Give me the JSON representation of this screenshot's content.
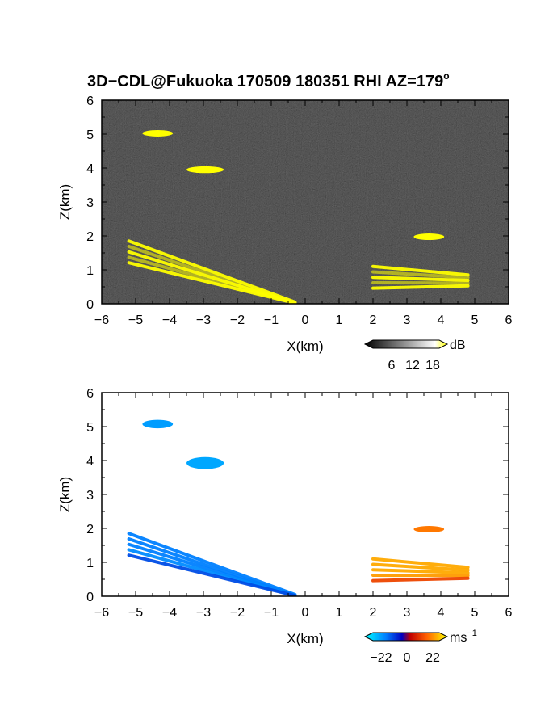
{
  "title": "3D−CDL@Fukuoka 170509 180351 RHI AZ=179",
  "title_degree": "o",
  "chart_data": [
    {
      "type": "heatmap",
      "name": "backscatter",
      "xlabel": "X(km)",
      "ylabel": "Z(km)",
      "xlim": [
        -6,
        6
      ],
      "ylim": [
        0,
        6
      ],
      "xticks": [
        "−6",
        "−5",
        "−4",
        "−3",
        "−2",
        "−1",
        "0",
        "1",
        "2",
        "3",
        "4",
        "5",
        "6"
      ],
      "yticks": [
        "0",
        "1",
        "2",
        "3",
        "4",
        "5",
        "6"
      ],
      "colorbar": {
        "unit": "dB",
        "ticks": [
          "6",
          "12",
          "18"
        ],
        "range": [
          0,
          21
        ]
      },
      "background": "#1e1e1e",
      "saturation_color": "#ffff00",
      "features": [
        {
          "kind": "patch",
          "x": [
            -4.8,
            -3.9
          ],
          "z": [
            4.95,
            5.1
          ],
          "level": "high"
        },
        {
          "kind": "patch",
          "x": [
            -3.5,
            -2.4
          ],
          "z": [
            3.85,
            4.05
          ],
          "level": "high"
        },
        {
          "kind": "patch",
          "x": [
            3.2,
            4.1
          ],
          "z": [
            1.9,
            2.05
          ],
          "level": "high"
        },
        {
          "kind": "band",
          "x": [
            -5.2,
            -0.3
          ],
          "z": [
            1.85,
            0.05
          ],
          "level": "high"
        },
        {
          "kind": "band",
          "x": [
            2.0,
            4.8
          ],
          "z": [
            1.1,
            0.85
          ],
          "level": "high"
        }
      ],
      "grid": false
    },
    {
      "type": "heatmap",
      "name": "doppler-velocity",
      "xlabel": "X(km)",
      "ylabel": "Z(km)",
      "xlim": [
        -6,
        6
      ],
      "ylim": [
        0,
        6
      ],
      "xticks": [
        "−6",
        "−5",
        "−4",
        "−3",
        "−2",
        "−1",
        "0",
        "1",
        "2",
        "3",
        "4",
        "5",
        "6"
      ],
      "yticks": [
        "0",
        "1",
        "2",
        "3",
        "4",
        "5",
        "6"
      ],
      "colorbar": {
        "unit": "ms",
        "unit_exp": "−1",
        "ticks": [
          "−22",
          "0",
          "22"
        ],
        "range": [
          -25,
          25
        ]
      },
      "features": [
        {
          "kind": "patch",
          "x": [
            -4.8,
            -3.9
          ],
          "z": [
            4.95,
            5.2
          ],
          "value": -15
        },
        {
          "kind": "patch",
          "x": [
            -3.5,
            -2.4
          ],
          "z": [
            3.75,
            4.1
          ],
          "value": -16
        },
        {
          "kind": "patch",
          "x": [
            3.2,
            4.1
          ],
          "z": [
            1.9,
            2.05
          ],
          "value": 14
        },
        {
          "kind": "band",
          "x": [
            -5.2,
            -0.3
          ],
          "z": [
            1.85,
            0.05
          ],
          "value": -12
        },
        {
          "kind": "band",
          "x": [
            2.0,
            4.8
          ],
          "z": [
            1.1,
            0.85
          ],
          "value": 18
        }
      ],
      "grid": false
    }
  ]
}
